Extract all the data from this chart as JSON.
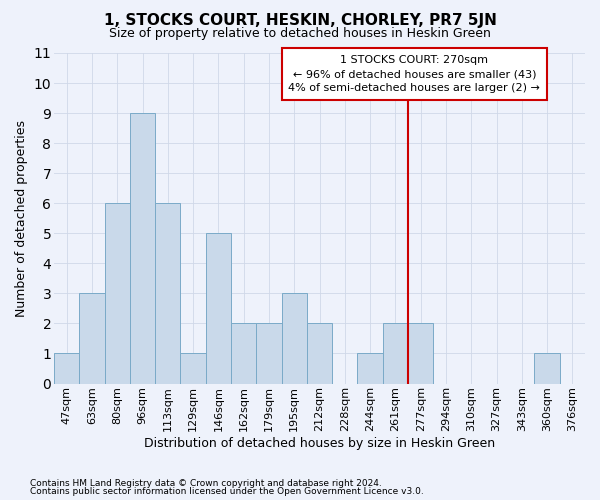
{
  "title": "1, STOCKS COURT, HESKIN, CHORLEY, PR7 5JN",
  "subtitle": "Size of property relative to detached houses in Heskin Green",
  "xlabel": "Distribution of detached houses by size in Heskin Green",
  "ylabel": "Number of detached properties",
  "footer_line1": "Contains HM Land Registry data © Crown copyright and database right 2024.",
  "footer_line2": "Contains public sector information licensed under the Open Government Licence v3.0.",
  "categories": [
    "47sqm",
    "63sqm",
    "80sqm",
    "96sqm",
    "113sqm",
    "129sqm",
    "146sqm",
    "162sqm",
    "179sqm",
    "195sqm",
    "212sqm",
    "228sqm",
    "244sqm",
    "261sqm",
    "277sqm",
    "294sqm",
    "310sqm",
    "327sqm",
    "343sqm",
    "360sqm",
    "376sqm"
  ],
  "values": [
    1,
    3,
    6,
    9,
    6,
    1,
    5,
    2,
    2,
    3,
    2,
    0,
    1,
    2,
    2,
    0,
    0,
    0,
    0,
    1,
    0
  ],
  "bar_color": "#c9d9ea",
  "bar_edge_color": "#7aaac8",
  "grid_color": "#d0d8e8",
  "background_color": "#eef2fb",
  "annotation_line1": "1 STOCKS COURT: 270sqm",
  "annotation_line2": "← 96% of detached houses are smaller (43)",
  "annotation_line3": "4% of semi-detached houses are larger (2) →",
  "annotation_box_color": "#ffffff",
  "annotation_box_edge": "#cc0000",
  "vline_color": "#cc0000",
  "vline_x": 13.5,
  "ylim": [
    0,
    11
  ],
  "yticks": [
    0,
    1,
    2,
    3,
    4,
    5,
    6,
    7,
    8,
    9,
    10,
    11
  ],
  "title_fontsize": 11,
  "subtitle_fontsize": 9,
  "ylabel_fontsize": 9,
  "xlabel_fontsize": 9,
  "tick_fontsize": 8,
  "annotation_fontsize": 8,
  "footer_fontsize": 6.5
}
